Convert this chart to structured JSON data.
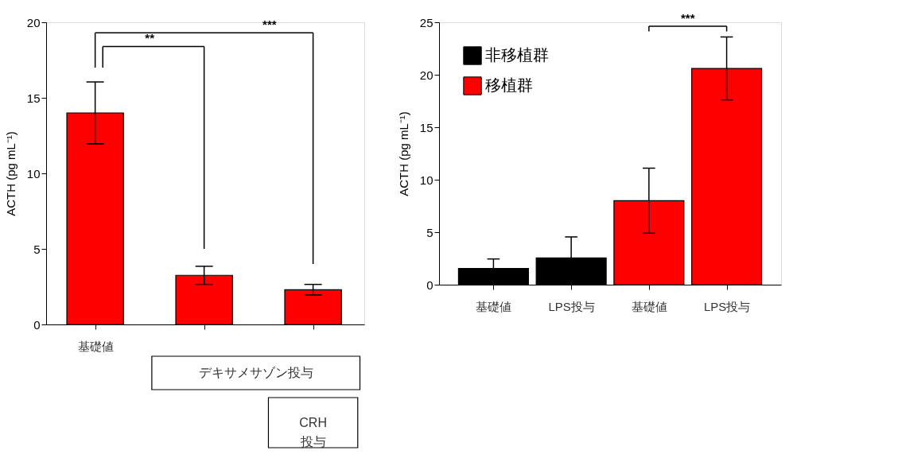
{
  "chart_data": [
    {
      "type": "bar",
      "ylabel": "ACTH (pg mL⁻¹)",
      "categories": [
        "基礎値",
        null,
        null
      ],
      "series": [
        {
          "color": "#ff0000",
          "values": [
            14.0,
            3.25,
            2.3
          ],
          "errors": [
            2.05,
            0.6,
            0.35
          ]
        }
      ],
      "ylim": [
        0,
        20
      ],
      "yticks": [
        0,
        5,
        10,
        15,
        20
      ],
      "grid": false,
      "legend": false,
      "annotations": [
        "**",
        "***",
        "デキサメサゾン投与",
        "CRH\n投与"
      ]
    },
    {
      "type": "bar",
      "ylabel": "ACTH (pg mL⁻¹)",
      "categories": [
        "基礎値",
        "LPS投与",
        "基礎値",
        "LPS投与"
      ],
      "series": [
        {
          "name": "非移植群",
          "color": "#000000",
          "values": [
            1.55,
            2.55,
            null,
            null
          ],
          "errors": [
            0.9,
            2.0,
            null,
            null
          ]
        },
        {
          "name": "移植群",
          "color": "#ff0000",
          "values": [
            null,
            null,
            8.0,
            20.6
          ],
          "errors": [
            null,
            null,
            3.1,
            3.0
          ]
        }
      ],
      "ylim": [
        0,
        25
      ],
      "yticks": [
        0,
        5,
        10,
        15,
        20,
        25
      ],
      "grid": false,
      "legend": "top left",
      "annotations": [
        "***"
      ]
    }
  ]
}
